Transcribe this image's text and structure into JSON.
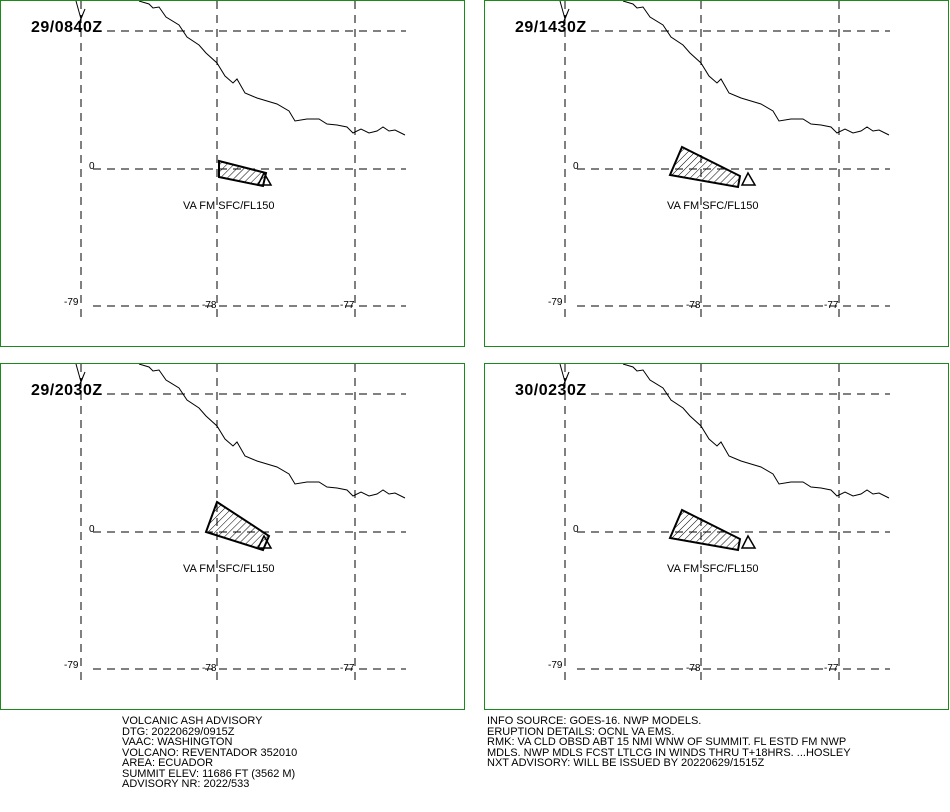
{
  "panels": [
    {
      "time": "29/0840Z",
      "label": "VA FM SFC/FL150",
      "lat_tick": "0",
      "lon_ticks": [
        "-79",
        "-78",
        "-77"
      ],
      "polygon": "small"
    },
    {
      "time": "29/1430Z",
      "label": "VA FM SFC/FL150",
      "lat_tick": "0",
      "lon_ticks": [
        "-79",
        "-78",
        "-77"
      ],
      "polygon": "medium"
    },
    {
      "time": "29/2030Z",
      "label": "VA FM SFC/FL150",
      "lat_tick": "0",
      "lon_ticks": [
        "-79",
        "-78",
        "-77"
      ],
      "polygon": "large"
    },
    {
      "time": "30/0230Z",
      "label": "VA FM SFC/FL150",
      "lat_tick": "0",
      "lon_ticks": [
        "-79",
        "-78",
        "-77"
      ],
      "polygon": "medium"
    }
  ],
  "advisory": {
    "left": [
      "VOLCANIC ASH ADVISORY",
      "DTG: 20220629/0915Z",
      "VAAC: WASHINGTON",
      "VOLCANO: REVENTADOR 352010",
      "AREA: ECUADOR",
      "SUMMIT ELEV: 11686 FT (3562 M)",
      "ADVISORY NR: 2022/533"
    ],
    "right": [
      "INFO SOURCE: GOES-16. NWP MODELS.",
      "ERUPTION DETAILS: OCNL VA EMS.",
      "RMK: VA CLD OBSD ABT 15 NMI WNW OF SUMMIT. FL ESTD FM NWP",
      "MDLS. NWP MDLS FCST LTLCG IN WINDS THRU T+18HRS. ...HOSLEY",
      "NXT ADVISORY: WILL BE ISSUED BY 20220629/1515Z"
    ]
  },
  "colors": {
    "frame": "#1a8a1a",
    "lines": "#000000"
  }
}
